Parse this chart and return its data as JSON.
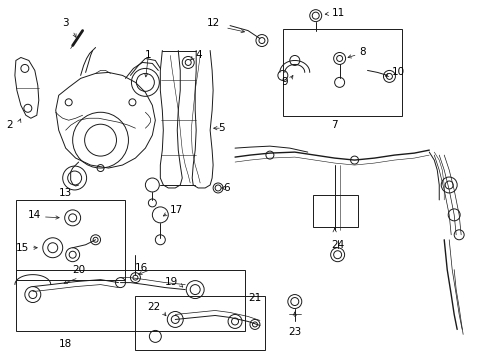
{
  "bg_color": "#ffffff",
  "line_color": "#1a1a1a",
  "fig_width": 4.89,
  "fig_height": 3.6,
  "dpi": 100,
  "font_size": 7.5,
  "lw": 0.7
}
